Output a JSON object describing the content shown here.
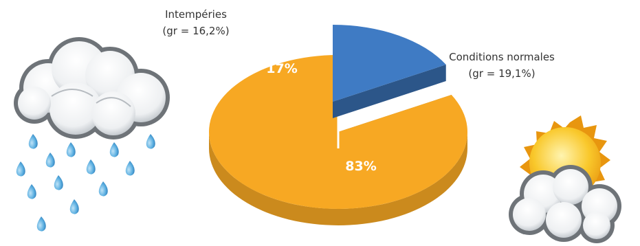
{
  "chart_data": {
    "type": "pie",
    "slices": [
      {
        "label": "Intempéries",
        "sublabel": "(gr = 16,2%)",
        "value": 17,
        "value_label": "17%",
        "color": "#3f7bc4",
        "exploded": true
      },
      {
        "label": "Conditions normales",
        "sublabel": "(gr = 19,1%)",
        "value": 83,
        "value_label": "83%",
        "color": "#f7a823",
        "exploded": false
      }
    ],
    "title": "",
    "legend": "none"
  },
  "icons": {
    "left": "rain-cloud-icon",
    "right": "sun-behind-cloud-icon"
  }
}
